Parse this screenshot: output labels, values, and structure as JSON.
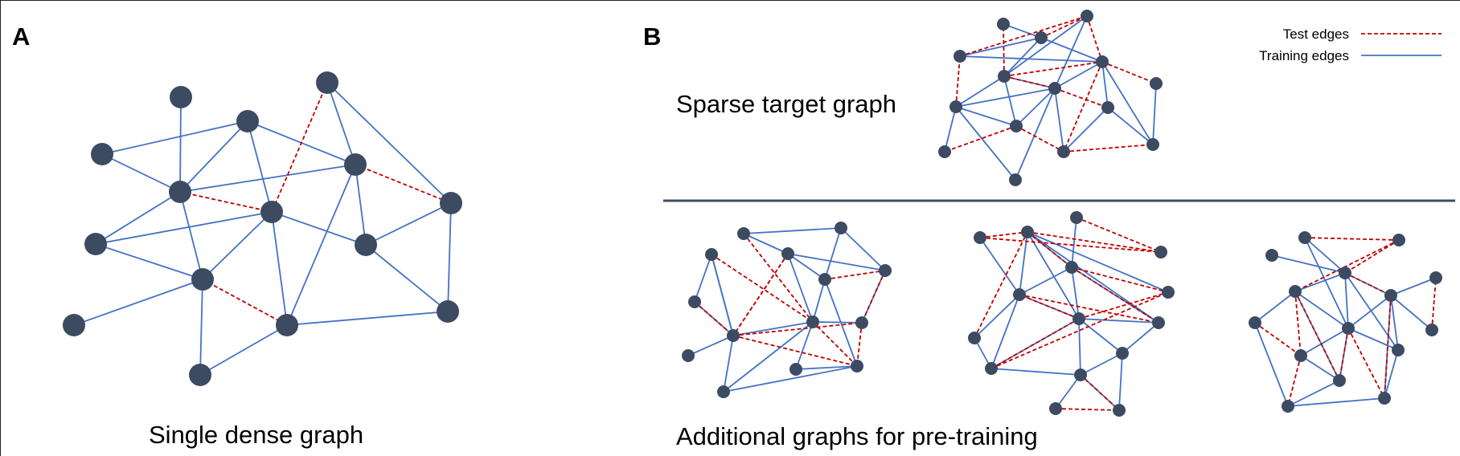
{
  "panels": {
    "a": {
      "letter": "A",
      "caption": "Single dense graph"
    },
    "b": {
      "letter": "B",
      "top_caption": "Sparse target graph",
      "bottom_caption": "Additional graphs for pre-training"
    }
  },
  "legend": {
    "test_label": "Test edges",
    "train_label": "Training edges"
  },
  "colors": {
    "training_edge": "#4472c4",
    "test_edge": "#c00000",
    "node": "#3d4b62",
    "divider": "#3d4b62"
  }
}
